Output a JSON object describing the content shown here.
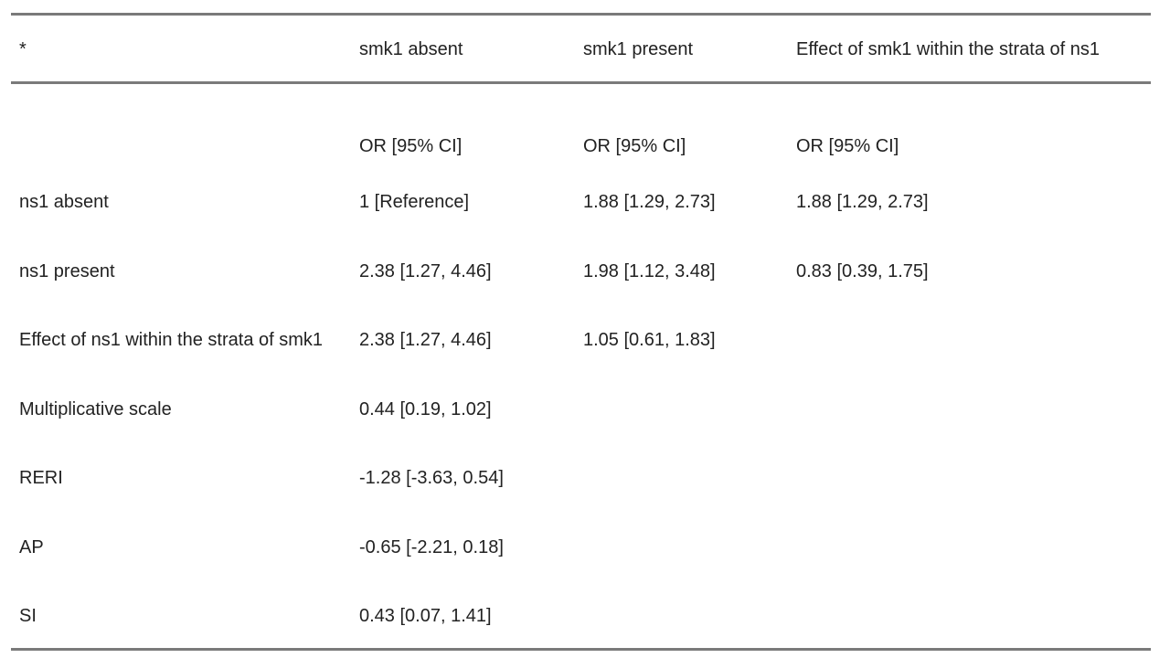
{
  "table": {
    "header": [
      "*",
      "smk1 absent",
      "smk1 present",
      "Effect of smk1 within the strata of ns1"
    ],
    "subheader": [
      "OR [95% CI]",
      "OR [95% CI]",
      "OR [95% CI]"
    ],
    "rows": [
      [
        "ns1 absent",
        "1 [Reference]",
        "1.88 [1.29, 2.73]",
        "1.88 [1.29, 2.73]"
      ],
      [
        "ns1 present",
        "2.38 [1.27, 4.46]",
        "1.98 [1.12, 3.48]",
        "0.83 [0.39, 1.75]"
      ],
      [
        "Effect of ns1 within the strata of smk1",
        "2.38 [1.27, 4.46]",
        "1.05 [0.61, 1.83]"
      ],
      [
        "Multiplicative scale",
        "0.44 [0.19, 1.02]"
      ],
      [
        "RERI",
        "-1.28 [-3.63, 0.54]"
      ],
      [
        "AP",
        "-0.65 [-2.21, 0.18]"
      ],
      [
        "SI",
        "0.43 [0.07, 1.41]"
      ]
    ]
  }
}
